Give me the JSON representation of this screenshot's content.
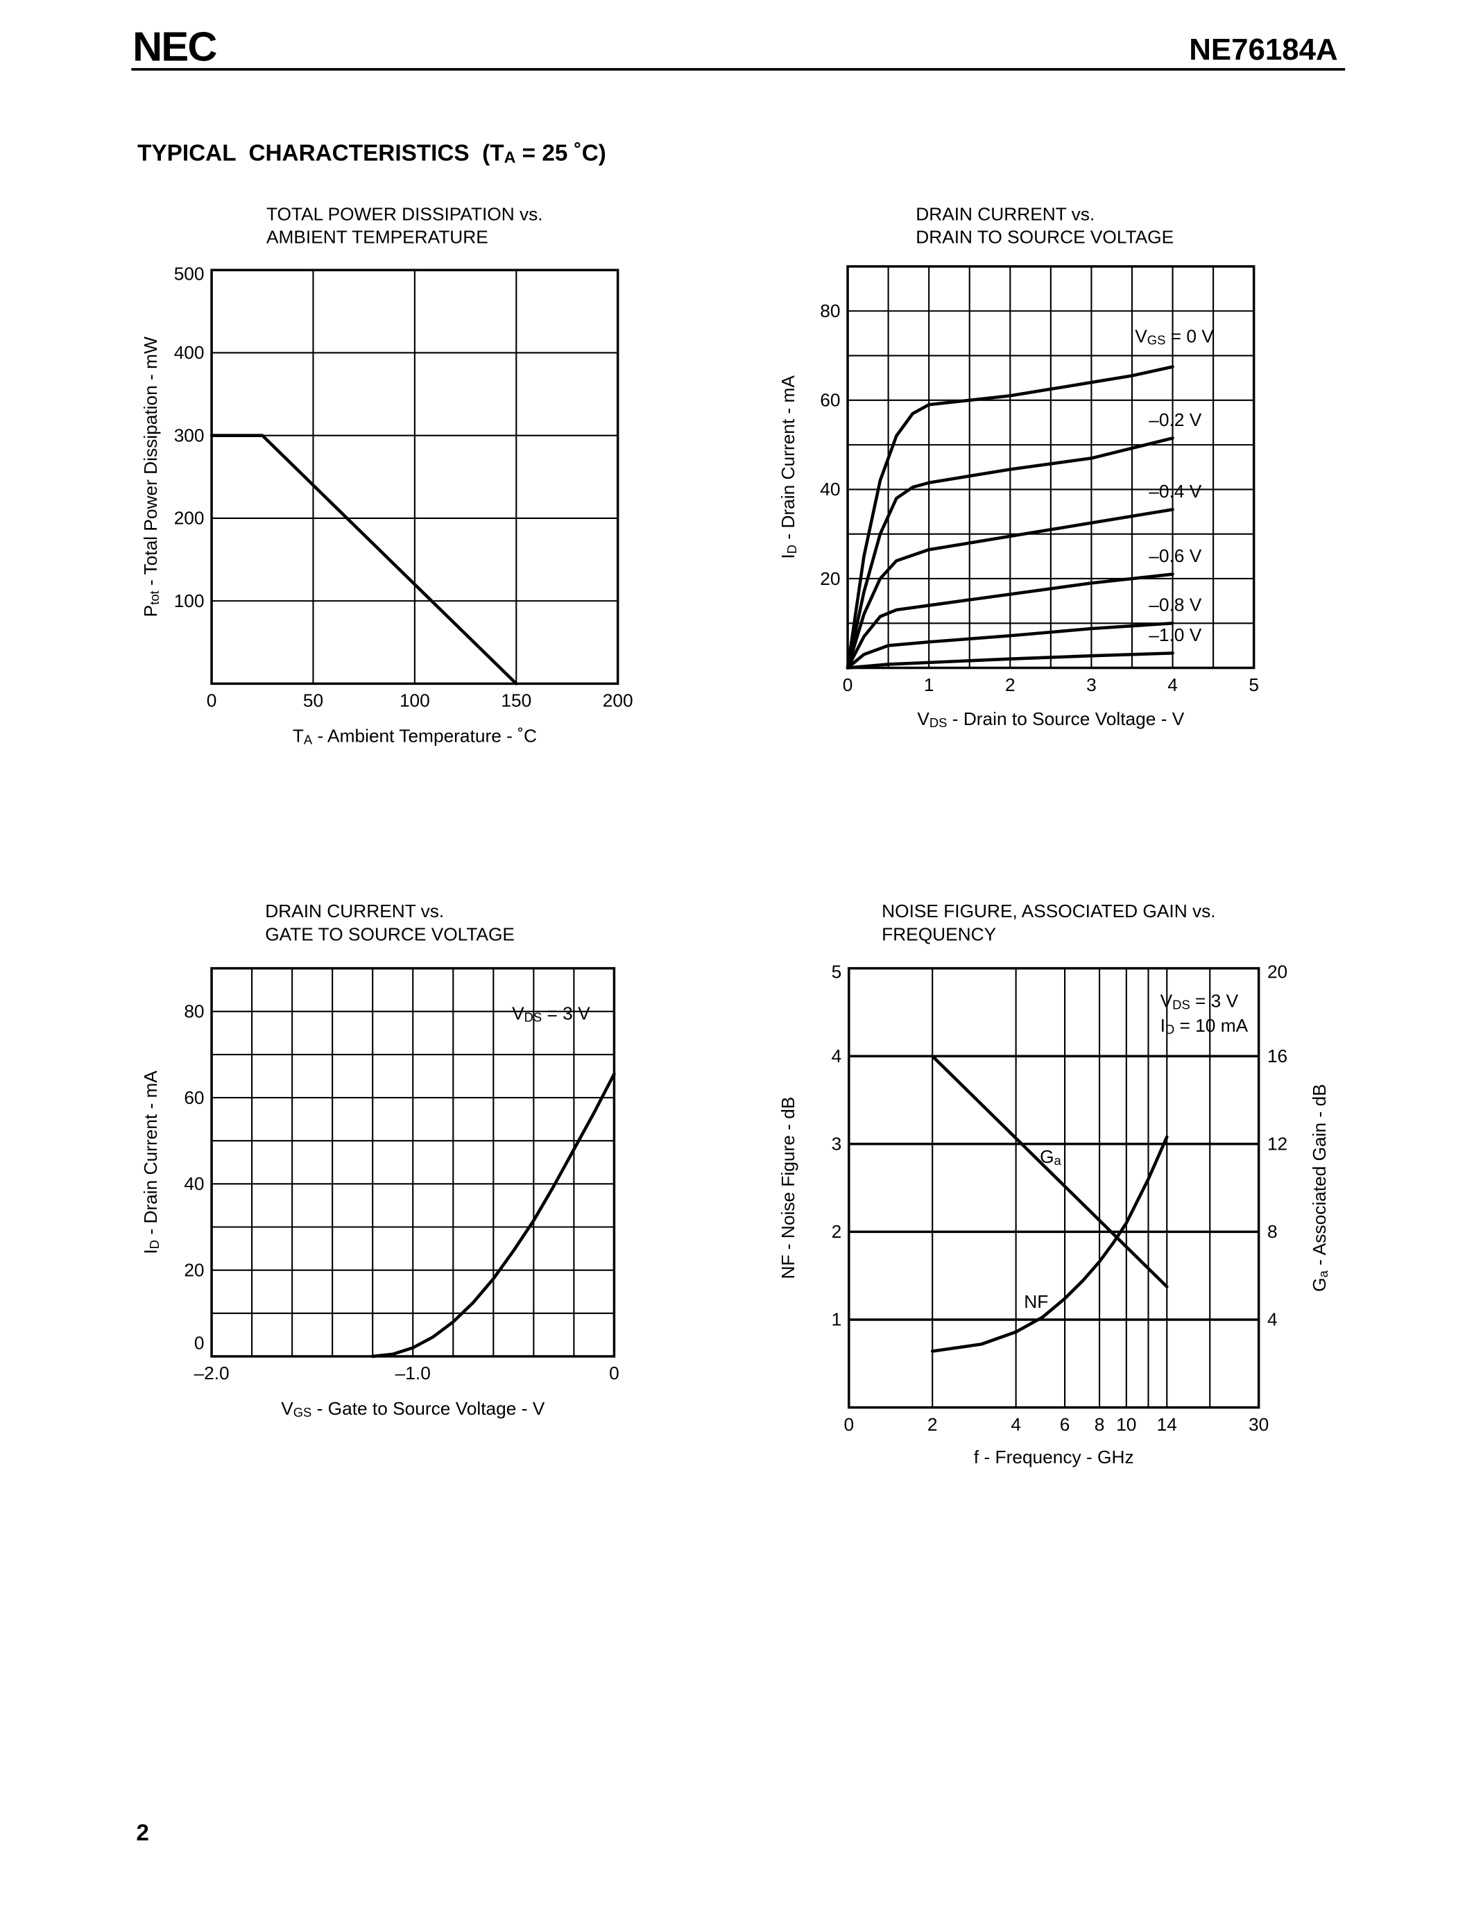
{
  "header": {
    "logo": "NEC",
    "part_number": "NE76184A"
  },
  "section_title": [
    {
      "text": "TYPICAL  CHARACTERISTICS  (T"
    },
    {
      "text": "A",
      "sub": true
    },
    {
      "text": " = 25 ˚C)"
    }
  ],
  "chart_data": [
    {
      "type": "line",
      "title": [
        "TOTAL POWER DISSIPATION vs.",
        "AMBIENT TEMPERATURE"
      ],
      "x_label": [
        {
          "text": "T"
        },
        {
          "text": "A",
          "sub": true
        },
        {
          "text": " - Ambient Temperature - ˚C"
        }
      ],
      "y_label": [
        {
          "text": "P"
        },
        {
          "text": "tot",
          "sub": true
        },
        {
          "text": " - Total Power Dissipation - mW"
        }
      ],
      "x": [
        0,
        25,
        150
      ],
      "values": [
        300,
        300,
        0
      ],
      "color": "#000000",
      "xlim": [
        0,
        200
      ],
      "xticks": [
        0,
        50,
        100,
        150,
        200
      ],
      "ylim": [
        0,
        500
      ],
      "yticks": [
        100,
        200,
        300,
        400,
        500
      ],
      "xgrid": [
        50,
        100,
        150
      ],
      "ygrid": [
        100,
        200,
        300,
        400
      ]
    },
    {
      "type": "line",
      "title": [
        "DRAIN CURRENT vs.",
        "DRAIN TO SOURCE VOLTAGE"
      ],
      "x_label": [
        {
          "text": "V"
        },
        {
          "text": "DS",
          "sub": true
        },
        {
          "text": " - Drain to Source Voltage - V"
        }
      ],
      "y_label": [
        {
          "text": "I"
        },
        {
          "text": "D",
          "sub": true
        },
        {
          "text": " - Drain Current - mA"
        }
      ],
      "xlim": [
        0,
        5
      ],
      "xticks": [
        0,
        1,
        2,
        3,
        4,
        5
      ],
      "ylim": [
        0,
        90
      ],
      "yticks": [
        20,
        40,
        60,
        80
      ],
      "xgrid": [
        0.5,
        1,
        1.5,
        2,
        2.5,
        3,
        3.5,
        4,
        4.5
      ],
      "ygrid": [
        10,
        20,
        30,
        40,
        50,
        60,
        70,
        80
      ],
      "series": [
        {
          "name": [
            {
              "text": "V"
            },
            {
              "text": "GS",
              "sub": true
            },
            {
              "text": " = 0 V"
            }
          ],
          "color": "#000000",
          "x": [
            0,
            0.2,
            0.4,
            0.6,
            0.8,
            1,
            2,
            3,
            3.5,
            4
          ],
          "values": [
            0,
            25,
            42,
            52,
            57,
            59,
            61,
            64,
            65.5,
            67.5
          ]
        },
        {
          "name": "–0.2 V",
          "color": "#000000",
          "x": [
            0,
            0.2,
            0.4,
            0.6,
            0.8,
            1,
            2,
            3,
            4
          ],
          "values": [
            0,
            17,
            30,
            38,
            40.5,
            41.5,
            44.5,
            47,
            51.5
          ]
        },
        {
          "name": "–0.4 V",
          "color": "#000000",
          "x": [
            0,
            0.2,
            0.4,
            0.6,
            1,
            2,
            3,
            4
          ],
          "values": [
            0,
            12,
            20,
            24,
            26.5,
            29.5,
            32.5,
            35.5
          ]
        },
        {
          "name": "–0.6 V",
          "color": "#000000",
          "x": [
            0,
            0.2,
            0.4,
            0.6,
            1,
            2,
            3,
            4
          ],
          "values": [
            0,
            7,
            11.5,
            13,
            14,
            16.5,
            19,
            21
          ]
        },
        {
          "name": "–0.8 V",
          "color": "#000000",
          "x": [
            0,
            0.2,
            0.5,
            1,
            2,
            3,
            4
          ],
          "values": [
            0,
            3,
            5,
            5.8,
            7.2,
            8.8,
            10
          ]
        },
        {
          "name": "–1.0 V",
          "color": "#000000",
          "x": [
            0,
            0.5,
            1,
            2,
            3,
            4
          ],
          "values": [
            0,
            0.8,
            1.2,
            2,
            2.7,
            3.3
          ]
        }
      ]
    },
    {
      "type": "line",
      "title": [
        "DRAIN CURRENT vs.",
        "GATE TO SOURCE VOLTAGE"
      ],
      "x_label": [
        {
          "text": "V"
        },
        {
          "text": "GS",
          "sub": true
        },
        {
          "text": " - Gate to Source Voltage - V"
        }
      ],
      "y_label": [
        {
          "text": "I"
        },
        {
          "text": "D",
          "sub": true
        },
        {
          "text": " - Drain Current - mA"
        }
      ],
      "annotations": [
        [
          {
            "text": "V"
          },
          {
            "text": "DS",
            "sub": true
          },
          {
            "text": " = 3 V"
          }
        ]
      ],
      "x": [
        -1.2,
        -1.1,
        -1,
        -0.9,
        -0.8,
        -0.7,
        -0.6,
        -0.5,
        -0.4,
        -0.3,
        -0.2,
        -0.1,
        0
      ],
      "values": [
        0,
        0.5,
        2,
        4.5,
        8,
        12.5,
        18,
        24.5,
        31.5,
        39.5,
        48,
        56.5,
        65.5
      ],
      "color": "#000000",
      "xlim": [
        -2,
        0
      ],
      "xticks": [
        {
          "value": -2,
          "label": "–2.0"
        },
        {
          "value": -1,
          "label": "–1.0"
        },
        0
      ],
      "ylim": [
        0,
        90
      ],
      "yticks": [
        0,
        20,
        40,
        60,
        80
      ],
      "xgrid": [
        -1.8,
        -1.6,
        -1.4,
        -1.2,
        -1,
        -0.8,
        -0.6,
        -0.4,
        -0.2
      ],
      "ygrid": [
        10,
        20,
        30,
        40,
        50,
        60,
        70,
        80
      ]
    },
    {
      "type": "line",
      "title": [
        "NOISE FIGURE, ASSOCIATED GAIN vs.",
        "FREQUENCY"
      ],
      "x_label": "f - Frequency - GHz",
      "y_label": "NF - Noise Figure - dB",
      "y2_label": [
        {
          "text": "G"
        },
        {
          "text": "a",
          "sub": true
        },
        {
          "text": " - Associated Gain - dB"
        }
      ],
      "annotations": [
        [
          {
            "text": "V"
          },
          {
            "text": "DS",
            "sub": true
          },
          {
            "text": " = 3 V"
          }
        ],
        [
          {
            "text": "I"
          },
          {
            "text": "D",
            "sub": true
          },
          {
            "text": " = 10 mA"
          }
        ]
      ],
      "xscale": "log",
      "xlim": [
        1,
        30
      ],
      "x_start_label": "0",
      "xticks": [
        2,
        4,
        6,
        8,
        10,
        14,
        30
      ],
      "ylim": [
        0,
        5
      ],
      "yticks": [
        1,
        2,
        3,
        4,
        5
      ],
      "y2lim": [
        0,
        20
      ],
      "y2ticks": [
        4,
        8,
        12,
        16,
        20
      ],
      "xgrid": [
        2,
        4,
        6,
        8,
        10,
        12,
        14,
        20
      ],
      "ygrid": [
        1,
        2,
        3,
        4
      ],
      "series": [
        {
          "name": "NF",
          "color": "#000000",
          "x": [
            2,
            3,
            4,
            5,
            6,
            7,
            8,
            9,
            10,
            12,
            14
          ],
          "values": [
            0.64,
            0.72,
            0.86,
            1.03,
            1.24,
            1.45,
            1.66,
            1.88,
            2.1,
            2.6,
            3.08
          ]
        },
        {
          "name": [
            {
              "text": "G"
            },
            {
              "text": "a",
              "sub": true
            }
          ],
          "color": "#000000",
          "axis": "y2",
          "x": [
            2,
            14
          ],
          "values": [
            16,
            5.5
          ]
        }
      ]
    }
  ],
  "page_number": "2"
}
